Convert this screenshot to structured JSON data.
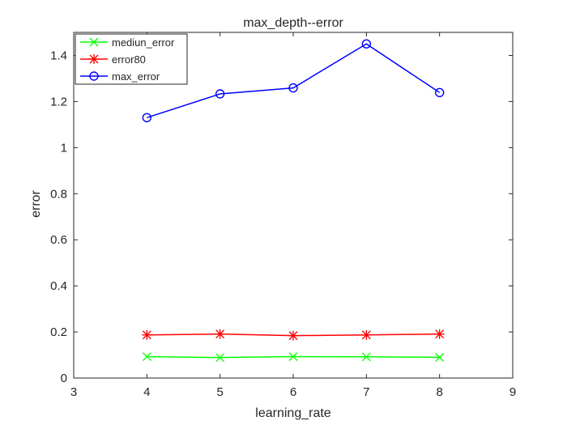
{
  "chart_data": {
    "type": "line",
    "title": "max_depth--error",
    "xlabel": "learning_rate",
    "ylabel": "error",
    "xlim": [
      3,
      9
    ],
    "ylim": [
      0,
      1.5
    ],
    "x_ticks": [
      "3",
      "4",
      "5",
      "6",
      "7",
      "8",
      "9"
    ],
    "y_ticks": [
      "0",
      "0.2",
      "0.4",
      "0.6",
      "0.8",
      "1",
      "1.2",
      "1.4"
    ],
    "x": [
      4,
      5,
      6,
      7,
      8
    ],
    "grid": false,
    "legend_position": "top-left",
    "series": [
      {
        "name": "mediun_error",
        "color": "#00ff00",
        "marker": "x",
        "values": [
          0.093,
          0.089,
          0.093,
          0.092,
          0.09
        ]
      },
      {
        "name": "error80",
        "color": "#ff0000",
        "marker": "asterisk",
        "values": [
          0.187,
          0.191,
          0.184,
          0.187,
          0.191
        ]
      },
      {
        "name": "max_error",
        "color": "#0000ff",
        "marker": "circle",
        "values": [
          1.13,
          1.233,
          1.259,
          1.45,
          1.239
        ]
      }
    ]
  }
}
